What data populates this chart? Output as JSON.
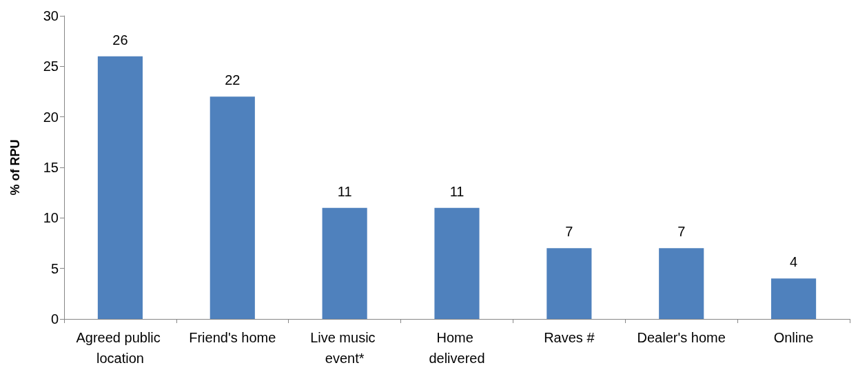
{
  "chart_data": {
    "type": "bar",
    "ylabel": "% of RPU",
    "categories": [
      "Agreed public location",
      "Friend's home",
      "Live music event*",
      "Home delivered",
      "Raves #",
      "Dealer's home",
      "Online"
    ],
    "values": [
      26,
      22,
      11,
      11,
      7,
      7,
      4
    ],
    "color": "#4f81bd",
    "ylim": [
      0,
      30
    ],
    "yticks": [
      0,
      5,
      10,
      15,
      20,
      25,
      30
    ],
    "grid": false,
    "data_labels": true
  }
}
